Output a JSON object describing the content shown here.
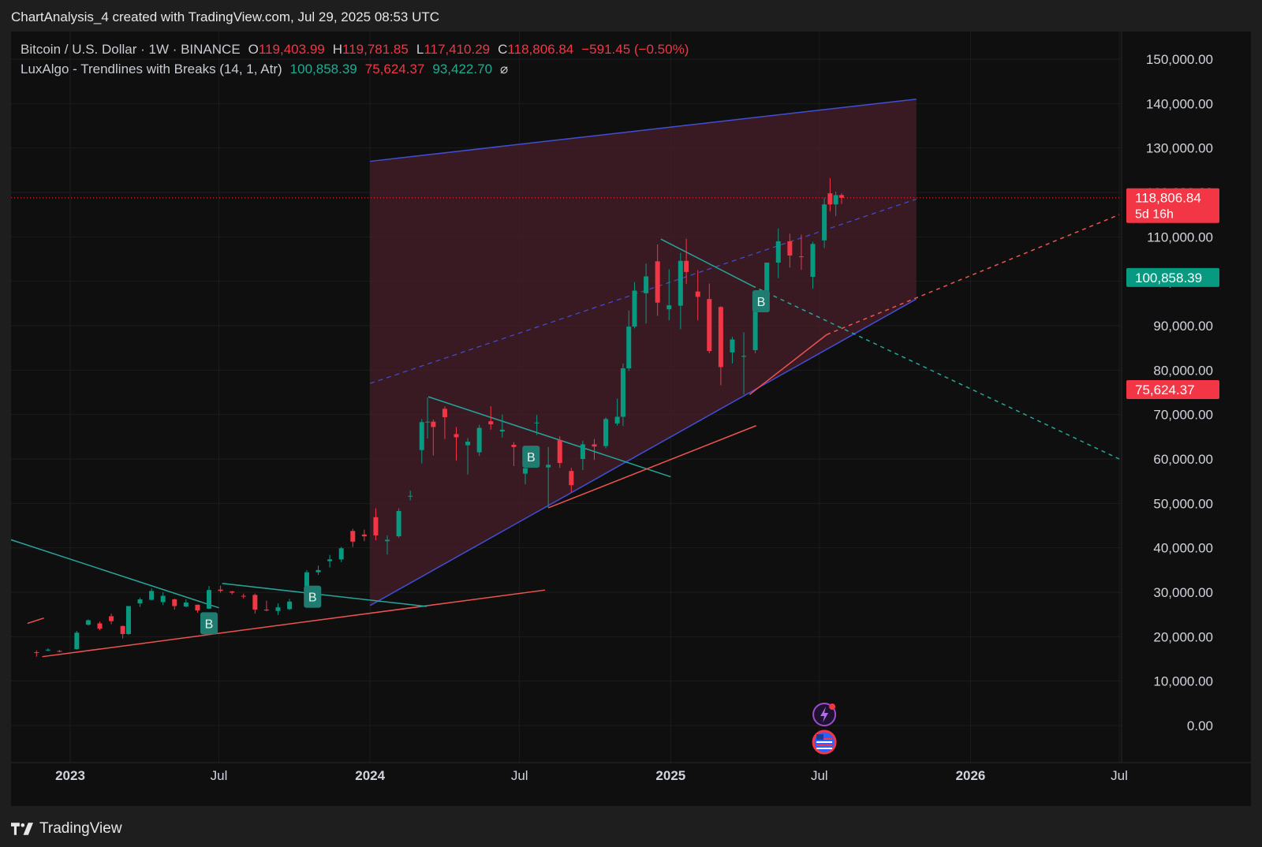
{
  "caption": "ChartAnalysis_4 created with TradingView.com, Jul 29, 2025 08:53 UTC",
  "legend": {
    "symbol": "Bitcoin / U.S. Dollar · 1W · BINANCE",
    "o_label": "O",
    "o_value": "119,403.99",
    "h_label": "H",
    "h_value": "119,781.85",
    "l_label": "L",
    "l_value": "117,410.29",
    "c_label": "C",
    "c_value": "118,806.84",
    "change": "−591.45 (−0.50%)",
    "indicator": "LuxAlgo - Trendlines with Breaks (14, 1, Atr)",
    "ind_v1": "100,858.39",
    "ind_v2": "75,624.37",
    "ind_v3": "93,422.70",
    "ind_icon": "hide-eye-icon"
  },
  "price_badges": {
    "last_price": "118,806.84",
    "countdown": "5d 16h",
    "upper_trend": "100,858.39",
    "lower_trend": "75,624.37"
  },
  "break_label": "B",
  "footer": {
    "brand": "TradingView",
    "logo_icon": "tradingview-logo-icon"
  },
  "colors": {
    "up": "#089981",
    "down": "#f23645",
    "channel": "#3f4fd6",
    "channel_fill": "#4a1f2a",
    "trend_up": "#ef5350",
    "trend_down": "#26a69a",
    "badge_red": "#f23645",
    "badge_teal": "#089981"
  },
  "chart_data": {
    "type": "candlestick",
    "symbol": "BTCUSD",
    "timeframe": "1W",
    "exchange": "BINANCE",
    "y_axis": {
      "min": 0,
      "max": 150000,
      "ticks": [
        "150,000.00",
        "140,000.00",
        "130,000.00",
        "120,000.00",
        "110,000.00",
        "100,000.00",
        "90,000.00",
        "80,000.00",
        "70,000.00",
        "60,000.00",
        "50,000.00",
        "40,000.00",
        "30,000.00",
        "20,000.00",
        "10,000.00",
        "0.00"
      ]
    },
    "x_axis": {
      "ticks": [
        {
          "label": "2023",
          "date": "2023-01-01",
          "bold": true
        },
        {
          "label": "Jul",
          "date": "2023-07-01",
          "bold": false
        },
        {
          "label": "2024",
          "date": "2024-01-01",
          "bold": true
        },
        {
          "label": "Jul",
          "date": "2024-07-01",
          "bold": false
        },
        {
          "label": "2025",
          "date": "2025-01-01",
          "bold": true
        },
        {
          "label": "Jul",
          "date": "2025-07-01",
          "bold": false
        },
        {
          "label": "2026",
          "date": "2026-01-01",
          "bold": true
        },
        {
          "label": "Jul",
          "date": "2026-07-01",
          "bold": false
        }
      ]
    },
    "last_price": 118806.84,
    "candles_approx": [
      [
        "2022-11-21",
        16500,
        16900,
        15500,
        16400
      ],
      [
        "2022-12-05",
        16900,
        17400,
        16700,
        17100
      ],
      [
        "2022-12-19",
        16800,
        17000,
        16500,
        16600
      ],
      [
        "2023-01-09",
        17200,
        21300,
        17100,
        20900
      ],
      [
        "2023-01-23",
        22700,
        23900,
        22500,
        23700
      ],
      [
        "2023-02-06",
        23000,
        23400,
        21500,
        21800
      ],
      [
        "2023-02-20",
        24600,
        25200,
        22800,
        23500
      ],
      [
        "2023-03-06",
        22400,
        22500,
        19600,
        20600
      ],
      [
        "2023-03-13",
        20600,
        26500,
        20400,
        26900
      ],
      [
        "2023-03-27",
        27500,
        28800,
        26700,
        28400
      ],
      [
        "2023-04-10",
        28300,
        30900,
        28200,
        30300
      ],
      [
        "2023-04-24",
        27800,
        30000,
        27100,
        29200
      ],
      [
        "2023-05-08",
        28400,
        28600,
        26100,
        26900
      ],
      [
        "2023-05-22",
        26800,
        28400,
        26600,
        27700
      ],
      [
        "2023-06-05",
        27200,
        27200,
        25400,
        25900
      ],
      [
        "2023-06-19",
        26300,
        31400,
        26200,
        30500
      ],
      [
        "2023-07-03",
        30600,
        31500,
        29900,
        30300
      ],
      [
        "2023-07-17",
        30200,
        30300,
        29500,
        29900
      ],
      [
        "2023-07-31",
        29200,
        29700,
        28600,
        29100
      ],
      [
        "2023-08-14",
        29400,
        29700,
        25200,
        26100
      ],
      [
        "2023-08-28",
        26100,
        28100,
        25700,
        25900
      ],
      [
        "2023-09-11",
        25800,
        27500,
        24900,
        26600
      ],
      [
        "2023-09-25",
        26200,
        28500,
        26000,
        27900
      ],
      [
        "2023-10-16",
        26900,
        35000,
        26800,
        34500
      ],
      [
        "2023-10-30",
        34500,
        36000,
        33900,
        35000
      ],
      [
        "2023-11-13",
        37000,
        38400,
        35600,
        37400
      ],
      [
        "2023-11-27",
        37400,
        40200,
        36800,
        39900
      ],
      [
        "2023-12-11",
        43800,
        44300,
        40200,
        41400
      ],
      [
        "2023-12-25",
        43000,
        44100,
        41500,
        42600
      ],
      [
        "2024-01-08",
        46900,
        48900,
        41700,
        42800
      ],
      [
        "2024-01-22",
        41500,
        42800,
        38500,
        41800
      ],
      [
        "2024-02-05",
        42600,
        48900,
        42300,
        48300
      ],
      [
        "2024-02-19",
        51700,
        52900,
        50700,
        51700
      ],
      [
        "2024-03-04",
        62000,
        69000,
        59000,
        68300
      ],
      [
        "2024-03-11",
        68300,
        73800,
        64600,
        68400
      ],
      [
        "2024-03-18",
        68400,
        68900,
        60800,
        67200
      ],
      [
        "2024-04-01",
        71300,
        71800,
        64500,
        69400
      ],
      [
        "2024-04-15",
        65600,
        67200,
        59600,
        64900
      ],
      [
        "2024-04-29",
        63100,
        64700,
        56500,
        63900
      ],
      [
        "2024-05-13",
        61500,
        67700,
        60700,
        67000
      ],
      [
        "2024-05-27",
        68500,
        71900,
        66600,
        67800
      ],
      [
        "2024-06-10",
        66200,
        70000,
        64800,
        66600
      ],
      [
        "2024-06-24",
        63200,
        63800,
        58400,
        62700
      ],
      [
        "2024-07-08",
        56700,
        59500,
        54300,
        57900
      ],
      [
        "2024-07-22",
        68100,
        69900,
        65400,
        68200
      ],
      [
        "2024-08-05",
        58100,
        62700,
        49000,
        58700
      ],
      [
        "2024-08-19",
        64200,
        65100,
        58000,
        59100
      ],
      [
        "2024-09-02",
        57300,
        58000,
        52500,
        54100
      ],
      [
        "2024-09-16",
        60000,
        64100,
        57500,
        63300
      ],
      [
        "2024-09-30",
        63300,
        64500,
        59800,
        62800
      ],
      [
        "2024-10-14",
        62900,
        69400,
        62400,
        69000
      ],
      [
        "2024-10-28",
        68000,
        73600,
        67500,
        69500
      ],
      [
        "2024-11-04",
        69500,
        81500,
        67400,
        80400
      ],
      [
        "2024-11-11",
        80400,
        93400,
        79800,
        89800
      ],
      [
        "2024-11-18",
        89800,
        99800,
        89400,
        97900
      ],
      [
        "2024-12-02",
        97300,
        104000,
        90500,
        101100
      ],
      [
        "2024-12-16",
        104500,
        108300,
        92200,
        95200
      ],
      [
        "2024-12-30",
        93700,
        102700,
        91200,
        94600
      ],
      [
        "2025-01-13",
        94500,
        106400,
        89200,
        104600
      ],
      [
        "2025-01-20",
        104600,
        109600,
        99400,
        102100
      ],
      [
        "2025-02-03",
        97700,
        102500,
        91200,
        96500
      ],
      [
        "2025-02-17",
        96000,
        99500,
        83800,
        84300
      ],
      [
        "2025-03-03",
        94200,
        94400,
        76600,
        80700
      ],
      [
        "2025-03-17",
        84000,
        87500,
        81500,
        86900
      ],
      [
        "2025-03-31",
        83000,
        88500,
        74500,
        83200
      ],
      [
        "2025-04-14",
        84500,
        95700,
        83800,
        94600
      ],
      [
        "2025-04-28",
        94300,
        104100,
        93300,
        104200
      ],
      [
        "2025-05-12",
        104200,
        111900,
        100700,
        109000
      ],
      [
        "2025-05-26",
        109000,
        110700,
        103100,
        105800
      ],
      [
        "2025-06-09",
        105600,
        110500,
        102600,
        105500
      ],
      [
        "2025-06-23",
        101000,
        108900,
        98300,
        108400
      ],
      [
        "2025-07-07",
        109200,
        118800,
        107500,
        117300
      ],
      [
        "2025-07-14",
        119800,
        123200,
        115700,
        117300
      ],
      [
        "2025-07-21",
        117300,
        120200,
        114700,
        119400
      ],
      [
        "2025-07-28",
        119404,
        119782,
        117410,
        118807
      ]
    ],
    "indicator": {
      "name": "LuxAlgo - Trendlines with Breaks",
      "params": [
        14,
        1,
        "Atr"
      ],
      "values": [
        100858.39,
        75624.37,
        93422.7
      ]
    },
    "annotations": {
      "parallel_channel": {
        "upper": [
          [
            "2024-01-01",
            127000
          ],
          [
            "2025-10-27",
            141000
          ]
        ],
        "lower": [
          [
            "2024-01-01",
            27000
          ],
          [
            "2025-10-27",
            96000
          ]
        ],
        "midline_dashed": true
      },
      "break_markers_dates": [
        "2023-06-19",
        "2023-10-23",
        "2024-07-15",
        "2025-04-21"
      ]
    }
  }
}
